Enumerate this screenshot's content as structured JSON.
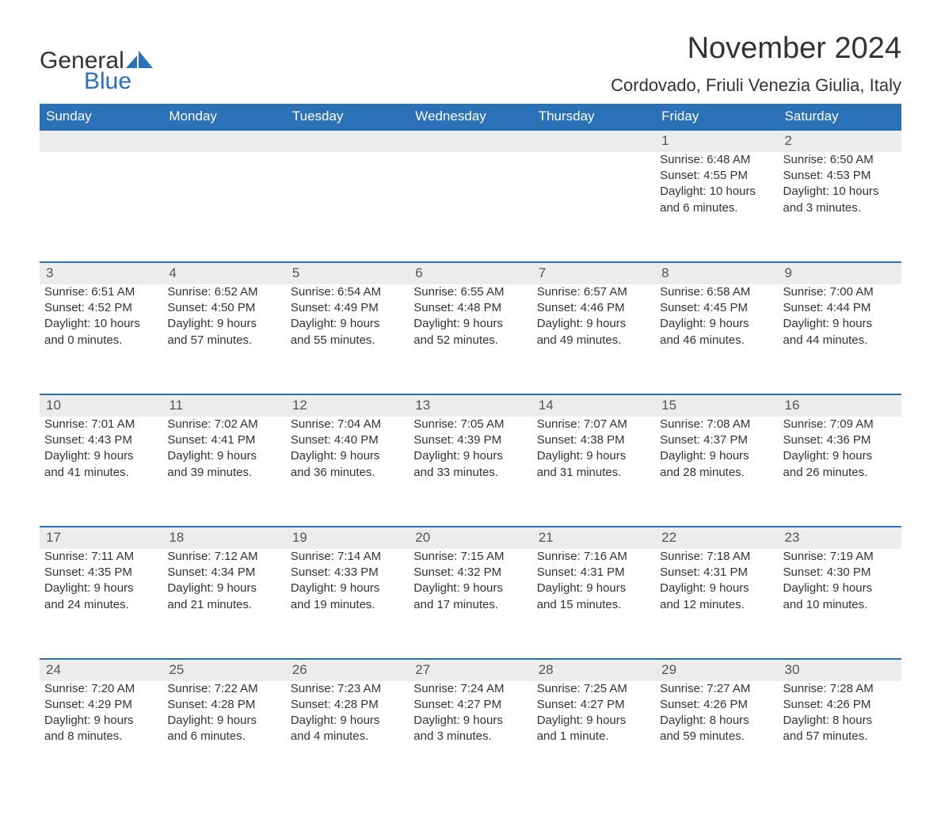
{
  "logo": {
    "text_general": "General",
    "text_blue": "Blue",
    "sail_color": "#2a71b8"
  },
  "title": "November 2024",
  "location": "Cordovado, Friuli Venezia Giulia, Italy",
  "colors": {
    "header_bg": "#2a71b8",
    "header_text": "#ffffff",
    "daynum_bg": "#ececec",
    "daynum_border": "#2a71b8",
    "body_text": "#333333",
    "page_bg": "#ffffff"
  },
  "day_headers": [
    "Sunday",
    "Monday",
    "Tuesday",
    "Wednesday",
    "Thursday",
    "Friday",
    "Saturday"
  ],
  "weeks": [
    [
      null,
      null,
      null,
      null,
      null,
      {
        "n": "1",
        "sunrise": "Sunrise: 6:48 AM",
        "sunset": "Sunset: 4:55 PM",
        "d1": "Daylight: 10 hours",
        "d2": "and 6 minutes."
      },
      {
        "n": "2",
        "sunrise": "Sunrise: 6:50 AM",
        "sunset": "Sunset: 4:53 PM",
        "d1": "Daylight: 10 hours",
        "d2": "and 3 minutes."
      }
    ],
    [
      {
        "n": "3",
        "sunrise": "Sunrise: 6:51 AM",
        "sunset": "Sunset: 4:52 PM",
        "d1": "Daylight: 10 hours",
        "d2": "and 0 minutes."
      },
      {
        "n": "4",
        "sunrise": "Sunrise: 6:52 AM",
        "sunset": "Sunset: 4:50 PM",
        "d1": "Daylight: 9 hours",
        "d2": "and 57 minutes."
      },
      {
        "n": "5",
        "sunrise": "Sunrise: 6:54 AM",
        "sunset": "Sunset: 4:49 PM",
        "d1": "Daylight: 9 hours",
        "d2": "and 55 minutes."
      },
      {
        "n": "6",
        "sunrise": "Sunrise: 6:55 AM",
        "sunset": "Sunset: 4:48 PM",
        "d1": "Daylight: 9 hours",
        "d2": "and 52 minutes."
      },
      {
        "n": "7",
        "sunrise": "Sunrise: 6:57 AM",
        "sunset": "Sunset: 4:46 PM",
        "d1": "Daylight: 9 hours",
        "d2": "and 49 minutes."
      },
      {
        "n": "8",
        "sunrise": "Sunrise: 6:58 AM",
        "sunset": "Sunset: 4:45 PM",
        "d1": "Daylight: 9 hours",
        "d2": "and 46 minutes."
      },
      {
        "n": "9",
        "sunrise": "Sunrise: 7:00 AM",
        "sunset": "Sunset: 4:44 PM",
        "d1": "Daylight: 9 hours",
        "d2": "and 44 minutes."
      }
    ],
    [
      {
        "n": "10",
        "sunrise": "Sunrise: 7:01 AM",
        "sunset": "Sunset: 4:43 PM",
        "d1": "Daylight: 9 hours",
        "d2": "and 41 minutes."
      },
      {
        "n": "11",
        "sunrise": "Sunrise: 7:02 AM",
        "sunset": "Sunset: 4:41 PM",
        "d1": "Daylight: 9 hours",
        "d2": "and 39 minutes."
      },
      {
        "n": "12",
        "sunrise": "Sunrise: 7:04 AM",
        "sunset": "Sunset: 4:40 PM",
        "d1": "Daylight: 9 hours",
        "d2": "and 36 minutes."
      },
      {
        "n": "13",
        "sunrise": "Sunrise: 7:05 AM",
        "sunset": "Sunset: 4:39 PM",
        "d1": "Daylight: 9 hours",
        "d2": "and 33 minutes."
      },
      {
        "n": "14",
        "sunrise": "Sunrise: 7:07 AM",
        "sunset": "Sunset: 4:38 PM",
        "d1": "Daylight: 9 hours",
        "d2": "and 31 minutes."
      },
      {
        "n": "15",
        "sunrise": "Sunrise: 7:08 AM",
        "sunset": "Sunset: 4:37 PM",
        "d1": "Daylight: 9 hours",
        "d2": "and 28 minutes."
      },
      {
        "n": "16",
        "sunrise": "Sunrise: 7:09 AM",
        "sunset": "Sunset: 4:36 PM",
        "d1": "Daylight: 9 hours",
        "d2": "and 26 minutes."
      }
    ],
    [
      {
        "n": "17",
        "sunrise": "Sunrise: 7:11 AM",
        "sunset": "Sunset: 4:35 PM",
        "d1": "Daylight: 9 hours",
        "d2": "and 24 minutes."
      },
      {
        "n": "18",
        "sunrise": "Sunrise: 7:12 AM",
        "sunset": "Sunset: 4:34 PM",
        "d1": "Daylight: 9 hours",
        "d2": "and 21 minutes."
      },
      {
        "n": "19",
        "sunrise": "Sunrise: 7:14 AM",
        "sunset": "Sunset: 4:33 PM",
        "d1": "Daylight: 9 hours",
        "d2": "and 19 minutes."
      },
      {
        "n": "20",
        "sunrise": "Sunrise: 7:15 AM",
        "sunset": "Sunset: 4:32 PM",
        "d1": "Daylight: 9 hours",
        "d2": "and 17 minutes."
      },
      {
        "n": "21",
        "sunrise": "Sunrise: 7:16 AM",
        "sunset": "Sunset: 4:31 PM",
        "d1": "Daylight: 9 hours",
        "d2": "and 15 minutes."
      },
      {
        "n": "22",
        "sunrise": "Sunrise: 7:18 AM",
        "sunset": "Sunset: 4:31 PM",
        "d1": "Daylight: 9 hours",
        "d2": "and 12 minutes."
      },
      {
        "n": "23",
        "sunrise": "Sunrise: 7:19 AM",
        "sunset": "Sunset: 4:30 PM",
        "d1": "Daylight: 9 hours",
        "d2": "and 10 minutes."
      }
    ],
    [
      {
        "n": "24",
        "sunrise": "Sunrise: 7:20 AM",
        "sunset": "Sunset: 4:29 PM",
        "d1": "Daylight: 9 hours",
        "d2": "and 8 minutes."
      },
      {
        "n": "25",
        "sunrise": "Sunrise: 7:22 AM",
        "sunset": "Sunset: 4:28 PM",
        "d1": "Daylight: 9 hours",
        "d2": "and 6 minutes."
      },
      {
        "n": "26",
        "sunrise": "Sunrise: 7:23 AM",
        "sunset": "Sunset: 4:28 PM",
        "d1": "Daylight: 9 hours",
        "d2": "and 4 minutes."
      },
      {
        "n": "27",
        "sunrise": "Sunrise: 7:24 AM",
        "sunset": "Sunset: 4:27 PM",
        "d1": "Daylight: 9 hours",
        "d2": "and 3 minutes."
      },
      {
        "n": "28",
        "sunrise": "Sunrise: 7:25 AM",
        "sunset": "Sunset: 4:27 PM",
        "d1": "Daylight: 9 hours",
        "d2": "and 1 minute."
      },
      {
        "n": "29",
        "sunrise": "Sunrise: 7:27 AM",
        "sunset": "Sunset: 4:26 PM",
        "d1": "Daylight: 8 hours",
        "d2": "and 59 minutes."
      },
      {
        "n": "30",
        "sunrise": "Sunrise: 7:28 AM",
        "sunset": "Sunset: 4:26 PM",
        "d1": "Daylight: 8 hours",
        "d2": "and 57 minutes."
      }
    ]
  ]
}
